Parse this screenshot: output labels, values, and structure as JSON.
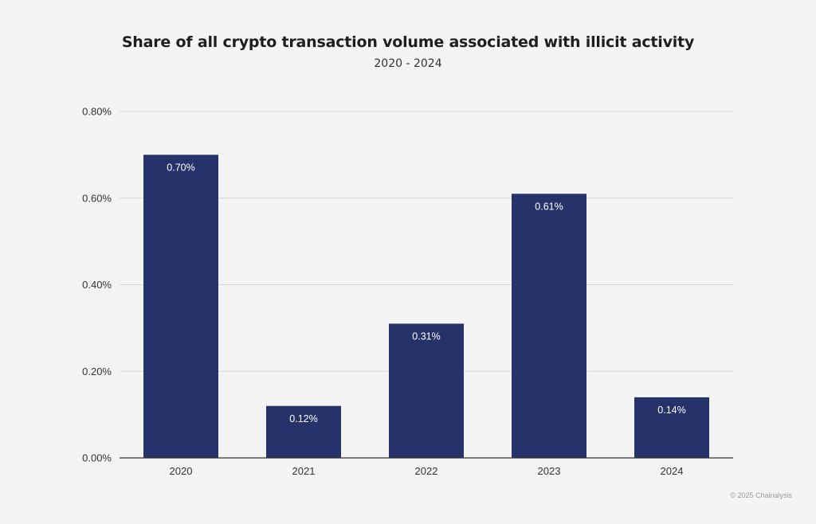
{
  "chart_data": {
    "type": "bar",
    "title": "Share of all crypto transaction volume associated with illicit activity",
    "subtitle": "2020 - 2024",
    "categories": [
      "2020",
      "2021",
      "2022",
      "2023",
      "2024"
    ],
    "values": [
      0.7,
      0.12,
      0.31,
      0.61,
      0.14
    ],
    "data_labels": [
      "0.70%",
      "0.12%",
      "0.31%",
      "0.61%",
      "0.14%"
    ],
    "xlabel": "",
    "ylabel": "",
    "ylim": [
      0,
      0.8
    ],
    "yticks": [
      0.0,
      0.2,
      0.4,
      0.6,
      0.8
    ],
    "ytick_labels": [
      "0.00%",
      "0.20%",
      "0.40%",
      "0.60%",
      "0.80%"
    ],
    "grid": true,
    "legend": "none",
    "bar_color": "#26336b",
    "label_color": "#ffffff"
  },
  "footer": {
    "source": "© 2025 Chainalysis"
  }
}
